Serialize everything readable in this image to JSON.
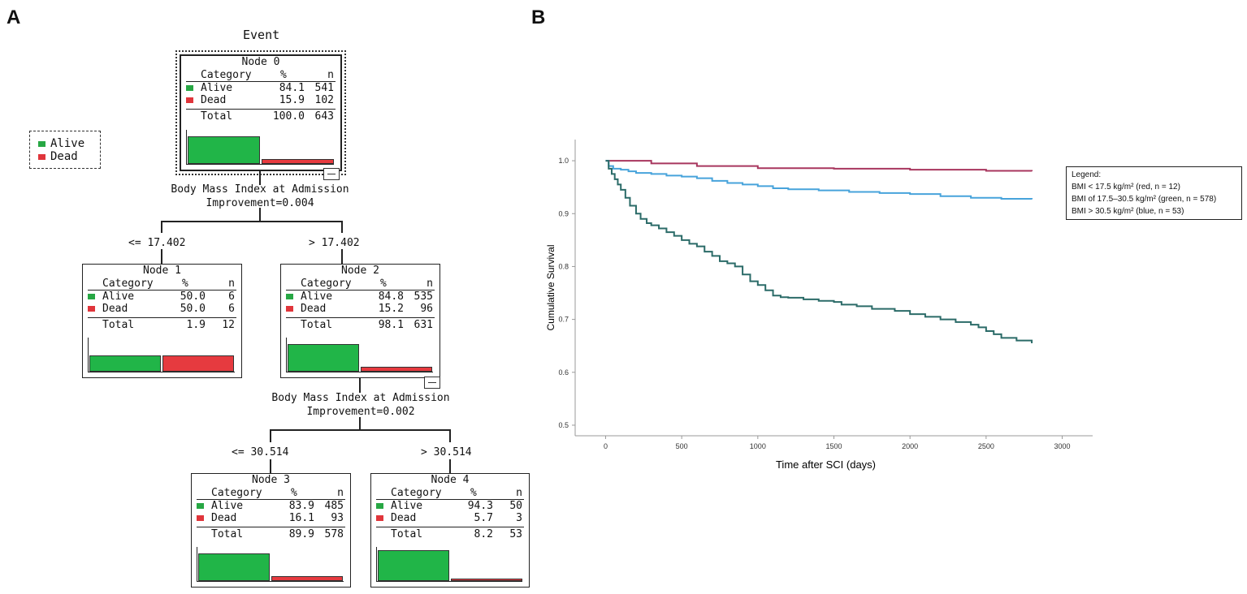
{
  "panel_a": {
    "letter": "A",
    "title": "Event",
    "legend": [
      {
        "label": "Alive",
        "color": "#27a744"
      },
      {
        "label": "Dead",
        "color": "#e0353b"
      }
    ],
    "headers": {
      "category": "Category",
      "pct": "%",
      "n": "n",
      "total": "Total"
    },
    "splits": [
      {
        "variable": "Body Mass Index at Admission",
        "improvement": "Improvement=0.004",
        "left_branch": "<= 17.402",
        "right_branch": "> 17.402"
      },
      {
        "variable": "Body Mass Index at Admission",
        "improvement": "Improvement=0.002",
        "left_branch": "<= 30.514",
        "right_branch": "> 30.514"
      }
    ],
    "nodes": [
      {
        "title": "Node 0",
        "alive_label": "Alive",
        "alive_pct": "84.1",
        "alive_n": "541",
        "dead_label": "Dead",
        "dead_pct": "15.9",
        "dead_n": "102",
        "total_pct": "100.0",
        "total_n": "643",
        "alive_frac": 0.841,
        "dead_frac": 0.159
      },
      {
        "title": "Node 1",
        "alive_label": "Alive",
        "alive_pct": "50.0",
        "alive_n": "6",
        "dead_label": "Dead",
        "dead_pct": "50.0",
        "dead_n": "6",
        "total_pct": "1.9",
        "total_n": "12",
        "alive_frac": 0.5,
        "dead_frac": 0.5
      },
      {
        "title": "Node 2",
        "alive_label": "Alive",
        "alive_pct": "84.8",
        "alive_n": "535",
        "dead_label": "Dead",
        "dead_pct": "15.2",
        "dead_n": "96",
        "total_pct": "98.1",
        "total_n": "631",
        "alive_frac": 0.848,
        "dead_frac": 0.152
      },
      {
        "title": "Node 3",
        "alive_label": "Alive",
        "alive_pct": "83.9",
        "alive_n": "485",
        "dead_label": "Dead",
        "dead_pct": "16.1",
        "dead_n": "93",
        "total_pct": "89.9",
        "total_n": "578",
        "alive_frac": 0.839,
        "dead_frac": 0.161
      },
      {
        "title": "Node 4",
        "alive_label": "Alive",
        "alive_pct": "94.3",
        "alive_n": "50",
        "dead_label": "Dead",
        "dead_pct": "5.7",
        "dead_n": "3",
        "total_pct": "8.2",
        "total_n": "53",
        "alive_frac": 0.943,
        "dead_frac": 0.057
      }
    ]
  },
  "panel_b": {
    "letter": "B",
    "legend_title": "Legend:",
    "legend_lines": [
      "BMI < 17.5 kg/m² (red, n = 12)",
      "BMI of 17.5–30.5 kg/m² (green, n = 578)",
      "BMI > 30.5 kg/m² (blue, n = 53)"
    ]
  },
  "chart_data": {
    "type": "line",
    "title": "",
    "xlabel": "Time after SCI (days)",
    "ylabel": "Cumulative Survival",
    "xlim": [
      -200,
      3200
    ],
    "ylim": [
      0.48,
      1.04
    ],
    "xticks": [
      0,
      500,
      1000,
      1500,
      2000,
      2500,
      3000
    ],
    "yticks": [
      0.5,
      0.6,
      0.7,
      0.8,
      0.9,
      1.0
    ],
    "grid": false,
    "series": [
      {
        "name": "red",
        "color": "#a8365e",
        "step": true,
        "x": [
          0,
          300,
          600,
          1000,
          1500,
          2000,
          2500,
          2800
        ],
        "y": [
          1.0,
          0.995,
          0.99,
          0.986,
          0.985,
          0.983,
          0.981,
          0.98
        ]
      },
      {
        "name": "blue",
        "color": "#47a3db",
        "step": true,
        "x": [
          0,
          20,
          50,
          100,
          150,
          200,
          300,
          400,
          500,
          600,
          700,
          800,
          900,
          1000,
          1100,
          1200,
          1400,
          1600,
          1800,
          2000,
          2200,
          2400,
          2600,
          2800
        ],
        "y": [
          1.0,
          0.99,
          0.985,
          0.983,
          0.98,
          0.977,
          0.975,
          0.972,
          0.97,
          0.967,
          0.962,
          0.958,
          0.955,
          0.952,
          0.948,
          0.946,
          0.944,
          0.941,
          0.939,
          0.937,
          0.933,
          0.93,
          0.928,
          0.927
        ]
      },
      {
        "name": "green",
        "color": "#2b6b68",
        "step": true,
        "x": [
          0,
          20,
          40,
          60,
          80,
          100,
          130,
          160,
          200,
          230,
          270,
          300,
          350,
          400,
          450,
          500,
          550,
          600,
          650,
          700,
          750,
          800,
          850,
          900,
          950,
          1000,
          1050,
          1100,
          1150,
          1200,
          1300,
          1400,
          1500,
          1550,
          1650,
          1750,
          1900,
          2000,
          2100,
          2200,
          2300,
          2400,
          2450,
          2500,
          2550,
          2600,
          2700,
          2800
        ],
        "y": [
          1.0,
          0.985,
          0.975,
          0.965,
          0.955,
          0.945,
          0.93,
          0.915,
          0.9,
          0.89,
          0.882,
          0.878,
          0.872,
          0.865,
          0.858,
          0.85,
          0.843,
          0.838,
          0.828,
          0.82,
          0.81,
          0.806,
          0.8,
          0.785,
          0.772,
          0.765,
          0.755,
          0.745,
          0.742,
          0.741,
          0.738,
          0.735,
          0.733,
          0.728,
          0.725,
          0.72,
          0.716,
          0.71,
          0.705,
          0.7,
          0.695,
          0.69,
          0.685,
          0.678,
          0.672,
          0.665,
          0.66,
          0.655
        ]
      }
    ]
  }
}
